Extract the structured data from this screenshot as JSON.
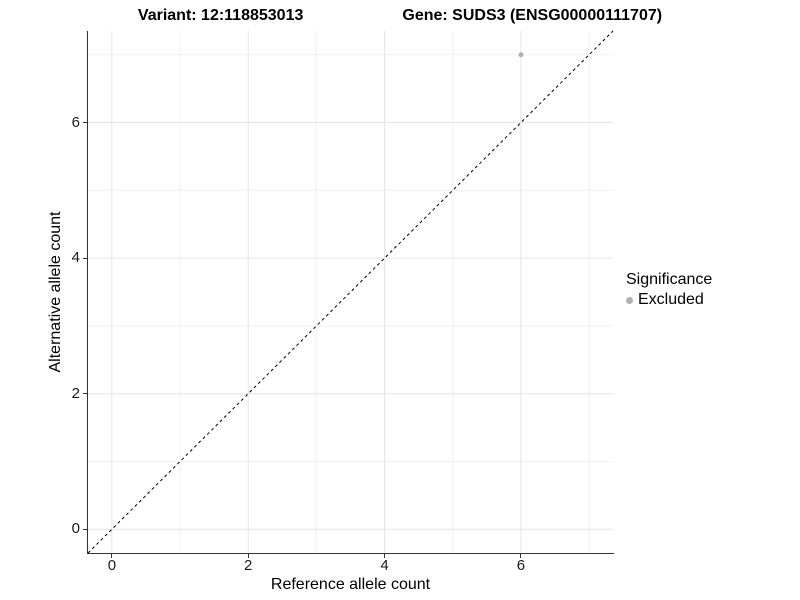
{
  "title": {
    "variant": "Variant: 12:118853013",
    "gene": "Gene: SUDS3 (ENSG00000111707)"
  },
  "axes": {
    "x_label": "Reference allele count",
    "y_label": "Alternative allele count"
  },
  "legend": {
    "title": "Significance",
    "items": [
      {
        "label": "Excluded",
        "color": "#b0b0b0"
      }
    ]
  },
  "colors": {
    "axis_line": "#333333",
    "tick": "#333333",
    "grid_major": "#e4e4e4",
    "grid_minor": "#f1f1f1",
    "reference_line": "#000000",
    "background": "#ffffff"
  },
  "chart_data": {
    "type": "scatter",
    "title": "Variant: 12:118853013    Gene: SUDS3 (ENSG00000111707)",
    "xlabel": "Reference allele count",
    "ylabel": "Alternative allele count",
    "xlim": [
      -0.35,
      7.35
    ],
    "ylim": [
      -0.35,
      7.35
    ],
    "x_ticks": [
      0,
      2,
      4,
      6
    ],
    "y_ticks": [
      0,
      2,
      4,
      6
    ],
    "x_minor": [
      1,
      3,
      5,
      7
    ],
    "y_minor": [
      1,
      3,
      5,
      7
    ],
    "grid": true,
    "legend_position": "right",
    "series": [
      {
        "name": "Excluded",
        "color": "#b0b0b0",
        "points": [
          {
            "x": 6,
            "y": 7
          }
        ]
      }
    ],
    "reference_line": {
      "type": "identity y=x",
      "style": "dashed",
      "color": "#000000"
    }
  }
}
